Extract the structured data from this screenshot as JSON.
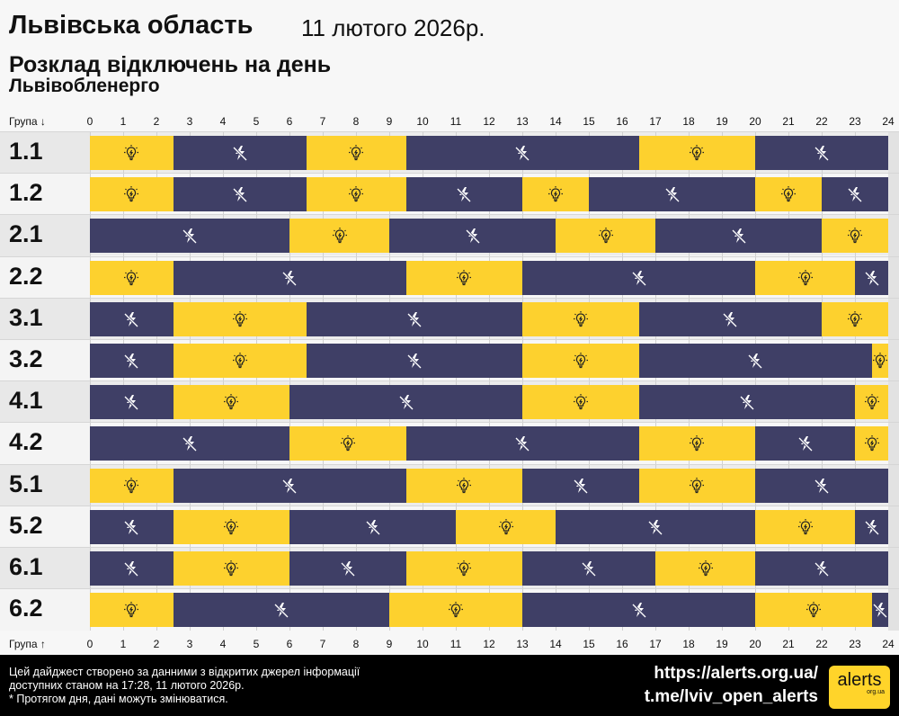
{
  "header": {
    "title": "Львівська область",
    "date": "11 лютого 2026р.",
    "subtitle": "Розклад відключень на день",
    "provider": "Львівобленерго"
  },
  "colors": {
    "on": "#fdd12e",
    "off": "#3f3f66",
    "accent": "#ffd42a"
  },
  "legend_icons": {
    "on": "lightbulb-icon",
    "off": "no-power-icon"
  },
  "chart_data": {
    "type": "timeline",
    "x_label_top": "Група ↓",
    "x_label_bottom": "Група ↑",
    "xlim": [
      0,
      24
    ],
    "ticks": [
      "0",
      "1",
      "2",
      "3",
      "4",
      "5",
      "6",
      "7",
      "8",
      "9",
      "10",
      "11",
      "12",
      "13",
      "14",
      "15",
      "16",
      "17",
      "18",
      "19",
      "20",
      "21",
      "22",
      "23",
      "24"
    ],
    "groups": [
      {
        "name": "1.1",
        "segments": [
          [
            0,
            2.5,
            "on"
          ],
          [
            2.5,
            6.5,
            "off"
          ],
          [
            6.5,
            9.5,
            "on"
          ],
          [
            9.5,
            16.5,
            "off"
          ],
          [
            16.5,
            20,
            "on"
          ],
          [
            20,
            24,
            "off"
          ]
        ]
      },
      {
        "name": "1.2",
        "segments": [
          [
            0,
            2.5,
            "on"
          ],
          [
            2.5,
            6.5,
            "off"
          ],
          [
            6.5,
            9.5,
            "on"
          ],
          [
            9.5,
            13,
            "off"
          ],
          [
            13,
            15,
            "on"
          ],
          [
            15,
            20,
            "off"
          ],
          [
            20,
            22,
            "on"
          ],
          [
            22,
            24,
            "off"
          ]
        ]
      },
      {
        "name": "2.1",
        "segments": [
          [
            0,
            6,
            "off"
          ],
          [
            6,
            9,
            "on"
          ],
          [
            9,
            14,
            "off"
          ],
          [
            14,
            17,
            "on"
          ],
          [
            17,
            22,
            "off"
          ],
          [
            22,
            24,
            "on"
          ]
        ]
      },
      {
        "name": "2.2",
        "segments": [
          [
            0,
            2.5,
            "on"
          ],
          [
            2.5,
            9.5,
            "off"
          ],
          [
            9.5,
            13,
            "on"
          ],
          [
            13,
            20,
            "off"
          ],
          [
            20,
            23,
            "on"
          ],
          [
            23,
            24,
            "off"
          ]
        ]
      },
      {
        "name": "3.1",
        "segments": [
          [
            0,
            2.5,
            "off"
          ],
          [
            2.5,
            6.5,
            "on"
          ],
          [
            6.5,
            13,
            "off"
          ],
          [
            13,
            16.5,
            "on"
          ],
          [
            16.5,
            22,
            "off"
          ],
          [
            22,
            24,
            "on"
          ]
        ]
      },
      {
        "name": "3.2",
        "segments": [
          [
            0,
            2.5,
            "off"
          ],
          [
            2.5,
            6.5,
            "on"
          ],
          [
            6.5,
            13,
            "off"
          ],
          [
            13,
            16.5,
            "on"
          ],
          [
            16.5,
            23.5,
            "off"
          ],
          [
            23.5,
            24,
            "on"
          ]
        ]
      },
      {
        "name": "4.1",
        "segments": [
          [
            0,
            2.5,
            "off"
          ],
          [
            2.5,
            6,
            "on"
          ],
          [
            6,
            13,
            "off"
          ],
          [
            13,
            16.5,
            "on"
          ],
          [
            16.5,
            23,
            "off"
          ],
          [
            23,
            24,
            "on"
          ]
        ]
      },
      {
        "name": "4.2",
        "segments": [
          [
            0,
            6,
            "off"
          ],
          [
            6,
            9.5,
            "on"
          ],
          [
            9.5,
            16.5,
            "off"
          ],
          [
            16.5,
            20,
            "on"
          ],
          [
            20,
            23,
            "off"
          ],
          [
            23,
            24,
            "on"
          ]
        ]
      },
      {
        "name": "5.1",
        "segments": [
          [
            0,
            2.5,
            "on"
          ],
          [
            2.5,
            9.5,
            "off"
          ],
          [
            9.5,
            13,
            "on"
          ],
          [
            13,
            16.5,
            "off"
          ],
          [
            16.5,
            20,
            "on"
          ],
          [
            20,
            24,
            "off"
          ]
        ]
      },
      {
        "name": "5.2",
        "segments": [
          [
            0,
            2.5,
            "off"
          ],
          [
            2.5,
            6,
            "on"
          ],
          [
            6,
            11,
            "off"
          ],
          [
            11,
            14,
            "on"
          ],
          [
            14,
            20,
            "off"
          ],
          [
            20,
            23,
            "on"
          ],
          [
            23,
            24,
            "off"
          ]
        ]
      },
      {
        "name": "6.1",
        "segments": [
          [
            0,
            2.5,
            "off"
          ],
          [
            2.5,
            6,
            "on"
          ],
          [
            6,
            9.5,
            "off"
          ],
          [
            9.5,
            13,
            "on"
          ],
          [
            13,
            17,
            "off"
          ],
          [
            17,
            20,
            "on"
          ],
          [
            20,
            24,
            "off"
          ]
        ]
      },
      {
        "name": "6.2",
        "segments": [
          [
            0,
            2.5,
            "on"
          ],
          [
            2.5,
            9,
            "off"
          ],
          [
            9,
            13,
            "on"
          ],
          [
            13,
            20,
            "off"
          ],
          [
            20,
            23.5,
            "on"
          ],
          [
            23.5,
            24,
            "off"
          ]
        ]
      }
    ]
  },
  "footer": {
    "note_line1": "Цей дайджест створено за данними з відкритих джерел інформації",
    "note_line2": "доступних станом на 17:28, 11 лютого 2026р.",
    "note_line3": "* Протягом дня, дані можуть змінюватися.",
    "link1": "https://alerts.org.ua/",
    "link2": "t.me/lviv_open_alerts",
    "logo_text": "alerts",
    "logo_sub": "org.ua"
  }
}
